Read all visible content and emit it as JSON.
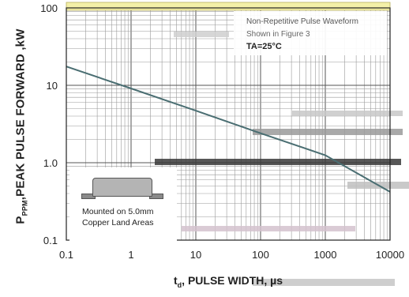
{
  "chart_data": {
    "type": "line",
    "xscale": "log",
    "yscale": "log",
    "xlim": [
      0.1,
      10000
    ],
    "ylim": [
      0.1,
      100
    ],
    "grid": true,
    "xticks": [
      0.1,
      1,
      10,
      100,
      1000,
      10000
    ],
    "yticks": [
      0.1,
      1,
      10,
      100
    ],
    "xtick_labels": [
      "0.1",
      "1",
      "10",
      "100",
      "1000",
      "10000"
    ],
    "ytick_labels": [
      "0.1",
      "1.0",
      "10",
      "100"
    ],
    "xlabel": "t",
    "xlabel_sub": "d",
    "xlabel_rest": ", PULSE WIDTH, µs",
    "ylabel_main": "P",
    "ylabel_sub": "PPM",
    "ylabel_rest": ",PEAK PULSE  FORWARD ,kW",
    "series": [
      {
        "x": [
          0.1,
          1,
          10,
          100,
          1000,
          10000
        ],
        "y": [
          17.5,
          9.1,
          4.7,
          2.4,
          1.25,
          0.42
        ],
        "color": "#4a6e72"
      }
    ],
    "annotation": {
      "line1": "Non-Repetitive Pulse Waveform",
      "line2": "Shown in Figure 3",
      "line3": "TA=25°C"
    },
    "inset": {
      "line1": "Mounted on 5.0mm",
      "line2": "Copper Land Areas"
    }
  }
}
